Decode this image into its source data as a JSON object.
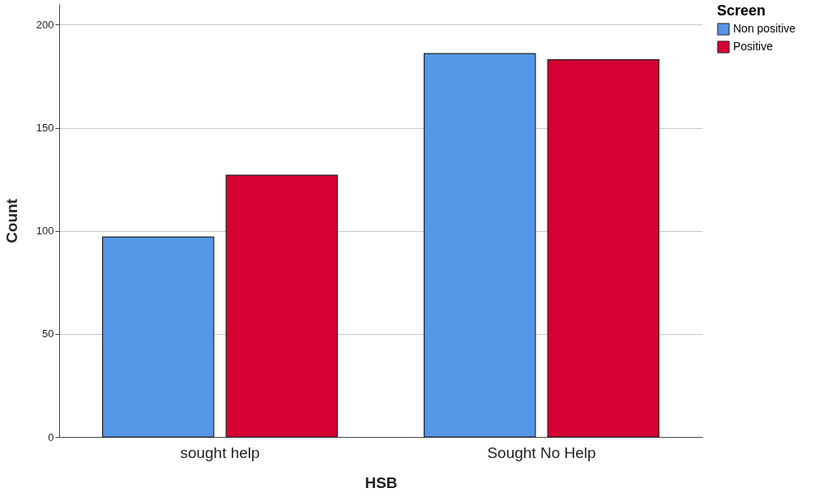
{
  "chart_data": {
    "type": "bar",
    "xlabel": "HSB",
    "ylabel": "Count",
    "legend_title": "Screen",
    "categories": [
      "sought help",
      "Sought No Help"
    ],
    "series": [
      {
        "name": "Non positive",
        "color": "#5596e6",
        "values": [
          97,
          186
        ]
      },
      {
        "name": "Positive",
        "color": "#d60032",
        "values": [
          127,
          183
        ]
      }
    ],
    "ylim": [
      0,
      210
    ],
    "yticks": [
      0,
      50,
      100,
      150,
      200
    ],
    "grid": "y",
    "legend": "top right"
  }
}
